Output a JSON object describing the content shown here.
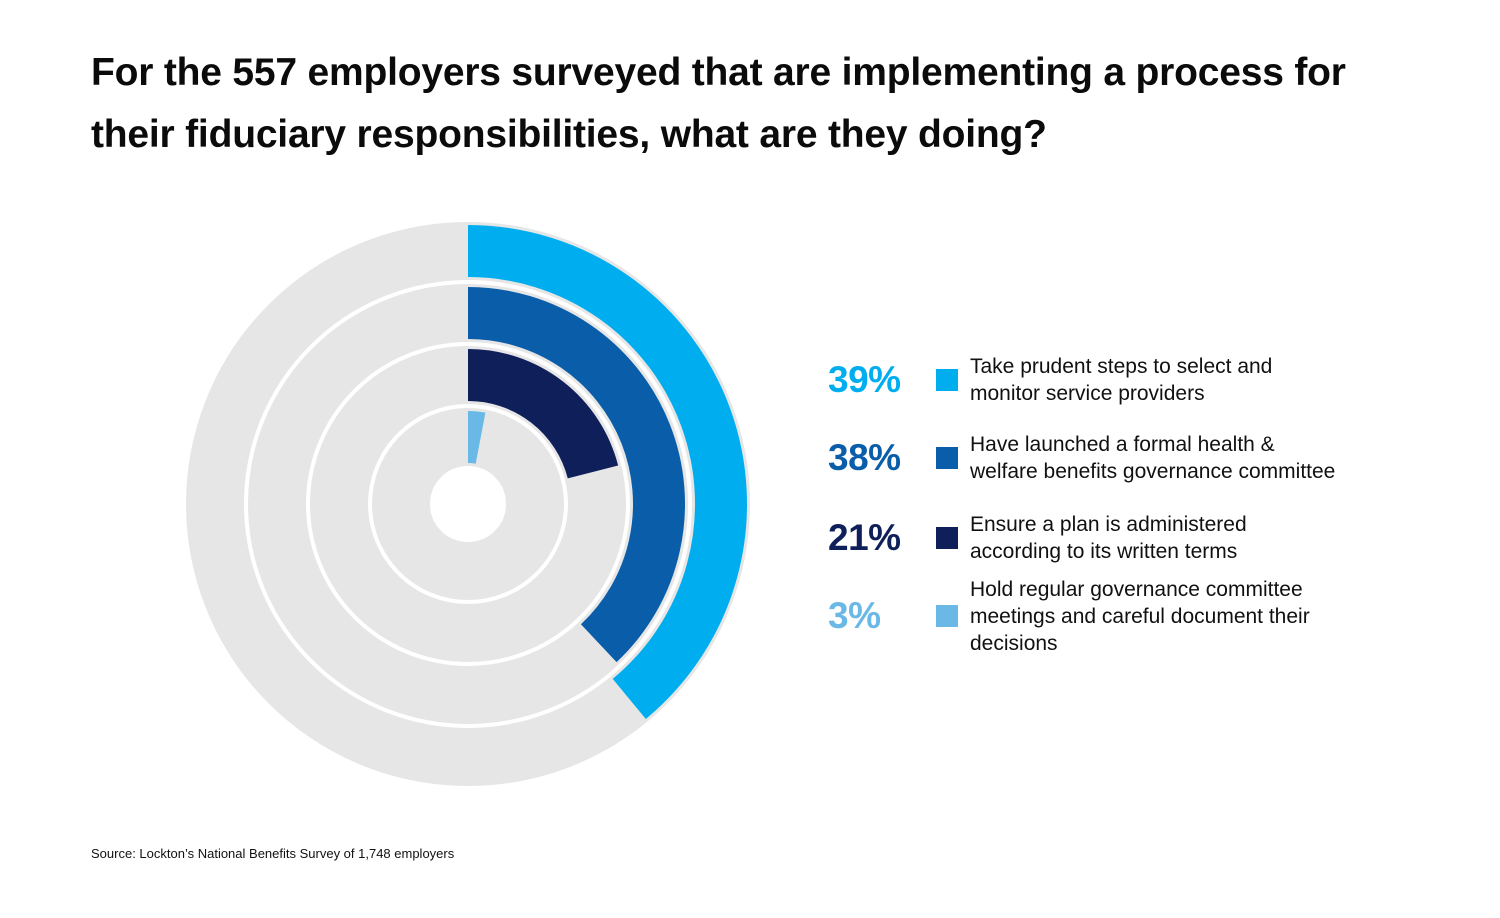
{
  "title": "For the 557 employers surveyed that are implementing a process for their fiduciary responsibilities, what are they doing?",
  "source": "Source: Lockton’s National Benefits Survey of 1,748 employers",
  "chart_data": {
    "type": "radial-bar",
    "title": "For the 557 employers surveyed that are implementing a process for their fiduciary responsibilities, what are they doing?",
    "unit": "%",
    "max": 100,
    "track_color": "#e6e6e6",
    "series": [
      {
        "value": 39,
        "label": "39%",
        "name": "Take prudent steps to select and monitor service providers",
        "color": "#00aeef"
      },
      {
        "value": 38,
        "label": "38%",
        "name": "Have launched a formal health & welfare benefits governance committee",
        "color": "#0a5da8"
      },
      {
        "value": 21,
        "label": "21%",
        "name": "Ensure a plan is administered according to its written terms",
        "color": "#0f1f5a"
      },
      {
        "value": 3,
        "label": "3%",
        "name": "Hold regular governance committee meetings and careful document their decisions",
        "color": "#6ab8e6"
      }
    ]
  }
}
